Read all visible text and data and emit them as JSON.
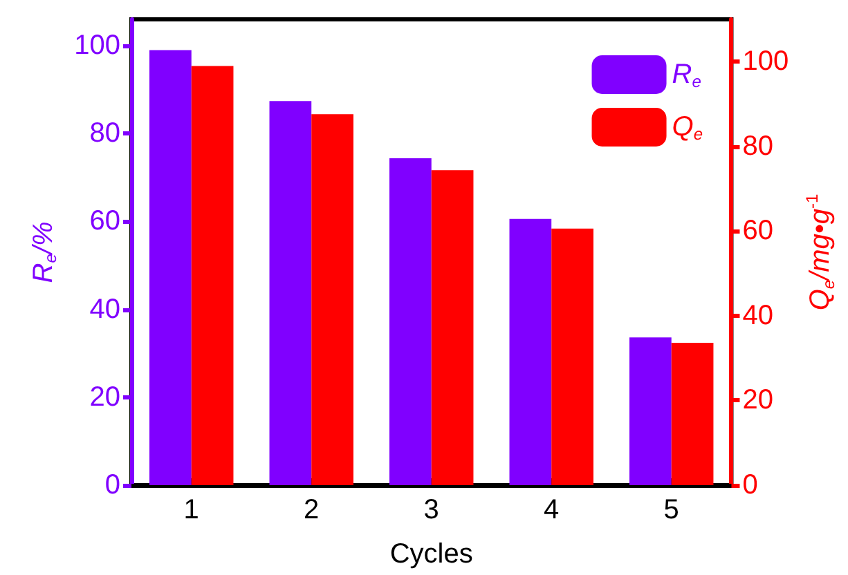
{
  "chart_data": {
    "type": "bar",
    "xlabel": "Cycles",
    "ylabel": "R$_{e}$/%",
    "y2label": "Q$_{e}$/mg•g$^{-1}$",
    "categories": [
      "1",
      "2",
      "3",
      "4",
      "5"
    ],
    "series": [
      {
        "name": "R$_{e}$",
        "color": "#8000ff",
        "values": [
          99.0,
          87.4,
          74.4,
          60.6,
          33.6
        ]
      },
      {
        "name": "Q$_{e}$",
        "color": "#ff0000",
        "axis": "y2",
        "values": [
          99.0,
          87.6,
          74.4,
          60.6,
          33.6
        ]
      }
    ],
    "ylim": [
      0,
      106
    ],
    "yticks": [
      0,
      20,
      40,
      60,
      80,
      100
    ],
    "y2lim": [
      0,
      110
    ],
    "y2ticks": [
      0,
      20,
      40,
      60,
      80,
      100
    ],
    "grid": false,
    "legend": "top right"
  }
}
